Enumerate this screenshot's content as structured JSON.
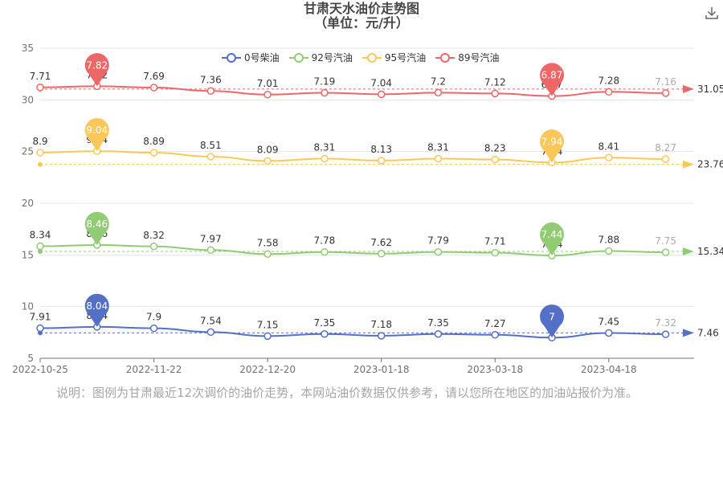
{
  "header": {
    "title": "甘肃天水油价走势图",
    "subtitle": "（单位：元/升）"
  },
  "toolbar": {
    "download_icon": "download-icon"
  },
  "footer": {
    "note": "说明：图例为甘肃最近12次调价的油价走势，本网站油价数据仅供参考，请以您所在地区的加油站报价为准。"
  },
  "chart_data": {
    "type": "line",
    "x": [
      "2022-10-25",
      "2022-11-08",
      "2022-11-22",
      "2022-12-06",
      "2022-12-20",
      "2023-01-03",
      "2023-01-18",
      "2023-02-03",
      "2023-03-18",
      "2023-04-01",
      "2023-04-18",
      "2023-05-04"
    ],
    "xticks": [
      "2022-10-25",
      "2022-11-22",
      "2022-12-20",
      "2023-01-18",
      "2023-03-18",
      "2023-04-18"
    ],
    "ylim": [
      5,
      35
    ],
    "yticks": [
      5,
      10,
      15,
      20,
      25,
      30,
      35
    ],
    "grid": true,
    "legend_position": "top",
    "series": [
      {
        "name": "0号柴油",
        "color": "#5470c6",
        "offset": 0,
        "values": [
          7.91,
          8.04,
          7.9,
          7.54,
          7.15,
          7.35,
          7.18,
          7.35,
          7.27,
          7.0,
          7.45,
          7.32
        ],
        "max_label": "8.04",
        "min_label": "7",
        "avg_label": "7.46"
      },
      {
        "name": "92号汽油",
        "color": "#91cc75",
        "offset": 7.5,
        "values": [
          8.34,
          8.46,
          8.32,
          7.97,
          7.58,
          7.78,
          7.62,
          7.79,
          7.71,
          7.44,
          7.88,
          7.75
        ],
        "max_label": "8.46",
        "min_label": "7.44",
        "avg_label": "15.34"
      },
      {
        "name": "95号汽油",
        "color": "#fac858",
        "offset": 16,
        "values": [
          8.9,
          9.04,
          8.89,
          8.51,
          8.09,
          8.31,
          8.13,
          8.31,
          8.23,
          7.94,
          8.41,
          8.27
        ],
        "max_label": "9.04",
        "min_label": "7.94",
        "avg_label": "23.76"
      },
      {
        "name": "89号汽油",
        "color": "#ee6666",
        "offset": 23.5,
        "values": [
          7.71,
          7.82,
          7.69,
          7.36,
          7.01,
          7.19,
          7.04,
          7.2,
          7.12,
          6.87,
          7.28,
          7.16
        ],
        "max_label": "7.82",
        "min_label": "6.87",
        "avg_label": "31.05"
      }
    ]
  }
}
